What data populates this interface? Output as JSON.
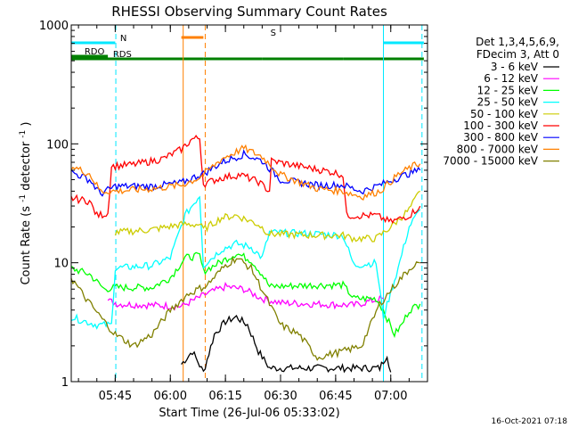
{
  "chart_data": {
    "type": "line",
    "title": "RHESSI Observing Summary Count Rates",
    "xlabel": "Start Time (26-Jul-06 05:33:02)",
    "ylabel": "Count Rate (s",
    "ylabel_sup": "-1",
    "ylabel_tail": " detector",
    "ylabel_end": ")",
    "yscale": "log",
    "ylim": [
      1,
      1000
    ],
    "xlim": [
      "05:33:02",
      "07:10:00"
    ],
    "x_ticks": [
      "05:45",
      "06:00",
      "06:15",
      "06:30",
      "06:45",
      "07:00"
    ],
    "y_tick_labels": [
      "1",
      "10",
      "100",
      "1000"
    ],
    "grid": false,
    "legend_header": [
      "Det 1,3,4,5,6,9,",
      "FDecim 3, Att 0"
    ],
    "legend_position": "right",
    "footer": "16-Oct-2021 07:18",
    "flags": [
      {
        "label": "N",
        "color": "#00e8ff",
        "segments": [
          [
            "05:33",
            "05:45"
          ],
          [
            "06:58",
            "07:09"
          ]
        ]
      },
      {
        "label": "S",
        "color": "#ff8000",
        "segments": [
          [
            "06:03",
            "06:09"
          ]
        ]
      },
      {
        "label": "RDO",
        "color": "#008000",
        "segments": [
          [
            "05:33",
            "05:43"
          ]
        ]
      },
      {
        "label": "RDS",
        "color": "#008000",
        "segments": [
          [
            "05:33",
            "06:09"
          ],
          [
            "06:09",
            "06:25"
          ],
          [
            "06:25",
            "06:47"
          ],
          [
            "06:47",
            "07:09"
          ]
        ]
      }
    ],
    "vlines": [
      {
        "time": "05:45:10",
        "color": "#00e8ff",
        "style": "dashed"
      },
      {
        "time": "06:09:30",
        "color": "#ff8000",
        "style": "dashed"
      },
      {
        "time": "07:08:30",
        "color": "#00e8ff",
        "style": "dashed"
      }
    ],
    "solid_vlines": [
      {
        "time": "05:33:02",
        "color": "#00e8ff"
      },
      {
        "time": "06:03:30",
        "color": "#ff8000"
      },
      {
        "time": "06:58:00",
        "color": "#00e8ff"
      }
    ],
    "series": [
      {
        "name": "3 - 6 keV",
        "color": "#000000",
        "points": [
          [
            "06:03",
            1.4
          ],
          [
            "06:06",
            1.8
          ],
          [
            "06:09",
            1.2
          ],
          [
            "06:12",
            2.5
          ],
          [
            "06:15",
            3.2
          ],
          [
            "06:18",
            3.5
          ],
          [
            "06:21",
            3.0
          ],
          [
            "06:24",
            1.8
          ],
          [
            "06:27",
            1.3
          ],
          [
            "06:57",
            1.3
          ],
          [
            "06:59",
            1.7
          ],
          [
            "07:00",
            1.2
          ]
        ]
      },
      {
        "name": "6 - 12 keV",
        "color": "#ff00ff",
        "points": [
          [
            "05:43",
            4.8
          ],
          [
            "05:46",
            4.5
          ],
          [
            "05:55",
            4.4
          ],
          [
            "06:03",
            4.3
          ],
          [
            "06:10",
            5.5
          ],
          [
            "06:15",
            6.3
          ],
          [
            "06:20",
            6.0
          ],
          [
            "06:25",
            5.0
          ],
          [
            "06:30",
            4.6
          ],
          [
            "06:40",
            4.5
          ],
          [
            "06:50",
            4.4
          ],
          [
            "06:55",
            4.8
          ],
          [
            "06:58",
            5.0
          ]
        ]
      },
      {
        "name": "12 - 25 keV",
        "color": "#00ff00",
        "points": [
          [
            "05:33",
            9.0
          ],
          [
            "05:38",
            8.0
          ],
          [
            "05:42",
            6.0
          ],
          [
            "05:45",
            6.2
          ],
          [
            "05:55",
            6.2
          ],
          [
            "06:00",
            7.5
          ],
          [
            "06:04",
            11.0
          ],
          [
            "06:08",
            11.5
          ],
          [
            "06:09",
            8.5
          ],
          [
            "06:12",
            9.5
          ],
          [
            "06:18",
            12.0
          ],
          [
            "06:22",
            10.5
          ],
          [
            "06:25",
            8.0
          ],
          [
            "06:27",
            6.3
          ],
          [
            "06:40",
            6.5
          ],
          [
            "06:47",
            6.5
          ],
          [
            "06:50",
            5.0
          ],
          [
            "06:56",
            5.0
          ],
          [
            "06:58",
            4.0
          ],
          [
            "07:01",
            2.5
          ],
          [
            "07:03",
            3.0
          ],
          [
            "07:05",
            4.0
          ],
          [
            "07:08",
            4.5
          ]
        ]
      },
      {
        "name": "25 - 50 keV",
        "color": "#00ffff",
        "points": [
          [
            "05:33",
            3.5
          ],
          [
            "05:40",
            3.0
          ],
          [
            "05:44",
            3.0
          ],
          [
            "05:45",
            9.0
          ],
          [
            "05:55",
            9.5
          ],
          [
            "06:00",
            11.0
          ],
          [
            "06:04",
            25.0
          ],
          [
            "06:08",
            37.0
          ],
          [
            "06:09",
            9.5
          ],
          [
            "06:14",
            13.0
          ],
          [
            "06:18",
            14.5
          ],
          [
            "06:22",
            13.5
          ],
          [
            "06:25",
            11.0
          ],
          [
            "06:27",
            18.0
          ],
          [
            "06:40",
            17.5
          ],
          [
            "06:47",
            17.0
          ],
          [
            "06:50",
            9.5
          ],
          [
            "06:56",
            10.0
          ],
          [
            "06:58",
            3.5
          ],
          [
            "07:02",
            9.0
          ],
          [
            "07:05",
            20.0
          ],
          [
            "07:08",
            28.0
          ]
        ]
      },
      {
        "name": "50 - 100 keV",
        "color": "#cccc00",
        "points": [
          [
            "05:45",
            18.0
          ],
          [
            "05:55",
            19.0
          ],
          [
            "06:03",
            21.0
          ],
          [
            "06:08",
            21.0
          ],
          [
            "06:09",
            19.0
          ],
          [
            "06:14",
            24.0
          ],
          [
            "06:18",
            25.0
          ],
          [
            "06:24",
            21.0
          ],
          [
            "06:27",
            17.5
          ],
          [
            "06:40",
            17.0
          ],
          [
            "06:47",
            17.0
          ],
          [
            "06:50",
            16.0
          ],
          [
            "06:56",
            16.0
          ],
          [
            "07:00",
            20.0
          ],
          [
            "07:05",
            28.0
          ],
          [
            "07:08",
            40.0
          ]
        ]
      },
      {
        "name": "100 - 300 keV",
        "color": "#ff0000",
        "points": [
          [
            "05:33",
            35.0
          ],
          [
            "05:38",
            33.0
          ],
          [
            "05:40",
            25.0
          ],
          [
            "05:43",
            26.0
          ],
          [
            "05:44",
            65.0
          ],
          [
            "05:50",
            67.0
          ],
          [
            "05:58",
            75.0
          ],
          [
            "06:03",
            90.0
          ],
          [
            "06:06",
            110.0
          ],
          [
            "06:08",
            112.0
          ],
          [
            "06:09",
            46.0
          ],
          [
            "06:14",
            52.0
          ],
          [
            "06:19",
            55.0
          ],
          [
            "06:24",
            48.0
          ],
          [
            "06:27",
            40.0
          ],
          [
            "06:27:30",
            72.0
          ],
          [
            "06:35",
            65.0
          ],
          [
            "06:44",
            58.0
          ],
          [
            "06:47",
            55.0
          ],
          [
            "06:48",
            25.0
          ],
          [
            "06:52",
            25.0
          ],
          [
            "06:56",
            25.0
          ],
          [
            "07:00",
            22.0
          ],
          [
            "07:05",
            25.0
          ],
          [
            "07:08",
            30.0
          ]
        ]
      },
      {
        "name": "300 - 800 keV",
        "color": "#0000ff",
        "points": [
          [
            "05:33",
            58.0
          ],
          [
            "05:38",
            50.0
          ],
          [
            "05:41",
            38.0
          ],
          [
            "05:45",
            44.0
          ],
          [
            "05:55",
            44.0
          ],
          [
            "06:03",
            47.0
          ],
          [
            "06:08",
            55.0
          ],
          [
            "06:09",
            56.0
          ],
          [
            "06:14",
            70.0
          ],
          [
            "06:20",
            82.0
          ],
          [
            "06:25",
            72.0
          ],
          [
            "06:30",
            50.0
          ],
          [
            "06:40",
            45.0
          ],
          [
            "06:47",
            45.0
          ],
          [
            "06:52",
            40.0
          ],
          [
            "06:57",
            45.0
          ],
          [
            "07:02",
            52.0
          ],
          [
            "07:06",
            58.0
          ],
          [
            "07:08",
            60.0
          ]
        ]
      },
      {
        "name": "800 - 7000 keV",
        "color": "#ff8000",
        "points": [
          [
            "05:33",
            65.0
          ],
          [
            "05:38",
            56.0
          ],
          [
            "05:41",
            40.0
          ],
          [
            "05:45",
            40.0
          ],
          [
            "05:55",
            42.0
          ],
          [
            "06:03",
            45.0
          ],
          [
            "06:08",
            52.0
          ],
          [
            "06:09",
            55.0
          ],
          [
            "06:14",
            75.0
          ],
          [
            "06:20",
            92.0
          ],
          [
            "06:25",
            78.0
          ],
          [
            "06:30",
            55.0
          ],
          [
            "06:40",
            42.0
          ],
          [
            "06:47",
            40.0
          ],
          [
            "06:52",
            36.0
          ],
          [
            "06:57",
            40.0
          ],
          [
            "07:02",
            55.0
          ],
          [
            "07:06",
            65.0
          ],
          [
            "07:08",
            68.0
          ]
        ]
      },
      {
        "name": "7000 - 15000 keV",
        "color": "#808000",
        "points": [
          [
            "05:33",
            7.5
          ],
          [
            "05:37",
            5.0
          ],
          [
            "05:41",
            3.5
          ],
          [
            "05:45",
            2.5
          ],
          [
            "05:50",
            2.0
          ],
          [
            "05:55",
            2.5
          ],
          [
            "06:00",
            4.0
          ],
          [
            "06:05",
            5.5
          ],
          [
            "06:10",
            6.5
          ],
          [
            "06:15",
            9.5
          ],
          [
            "06:18",
            11.0
          ],
          [
            "06:22",
            9.0
          ],
          [
            "06:27",
            4.5
          ],
          [
            "06:30",
            3.0
          ],
          [
            "06:35",
            2.5
          ],
          [
            "06:40",
            1.6
          ],
          [
            "06:47",
            1.8
          ],
          [
            "06:52",
            2.0
          ],
          [
            "06:57",
            4.5
          ],
          [
            "07:02",
            7.0
          ],
          [
            "07:06",
            9.5
          ],
          [
            "07:08",
            10.0
          ]
        ]
      }
    ]
  }
}
